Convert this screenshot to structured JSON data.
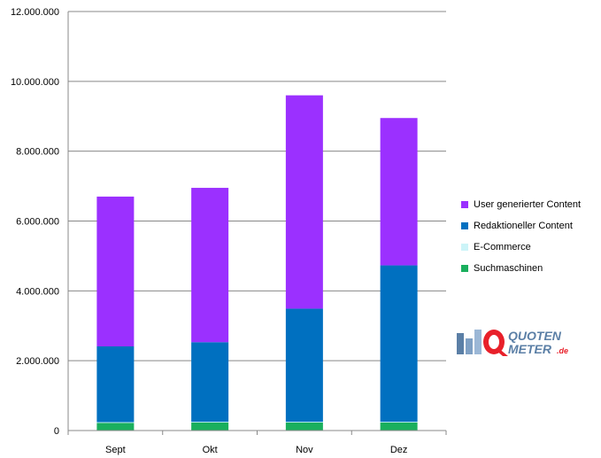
{
  "chart_data": {
    "type": "bar",
    "stacked": true,
    "categories": [
      "Sept",
      "Okt",
      "Nov",
      "Dez"
    ],
    "series": [
      {
        "name": "Suchmaschinen",
        "color": "#1aaf5d",
        "values": [
          220000,
          230000,
          230000,
          230000
        ]
      },
      {
        "name": "E-Commerce",
        "color": "#ccf4f8",
        "values": [
          20000,
          20000,
          20000,
          20000
        ]
      },
      {
        "name": "Redaktioneller Content",
        "color": "#0070c0",
        "values": [
          2170000,
          2280000,
          3240000,
          4480000
        ]
      },
      {
        "name": "User generierter Content",
        "color": "#9b30ff",
        "values": [
          4290000,
          4420000,
          6110000,
          4220000
        ]
      }
    ],
    "ylim": [
      0,
      12000000
    ],
    "yticks": [
      0,
      2000000,
      4000000,
      6000000,
      8000000,
      10000000,
      12000000
    ],
    "ytick_labels": [
      "0",
      "2.000.000",
      "4.000.000",
      "6.000.000",
      "8.000.000",
      "10.000.000",
      "12.000.000"
    ],
    "grid": true,
    "legend_position": "right",
    "title": "",
    "xlabel": "",
    "ylabel": ""
  },
  "logo": {
    "line1": "QUOTEN",
    "line2": "METER",
    "suffix": ".de"
  }
}
